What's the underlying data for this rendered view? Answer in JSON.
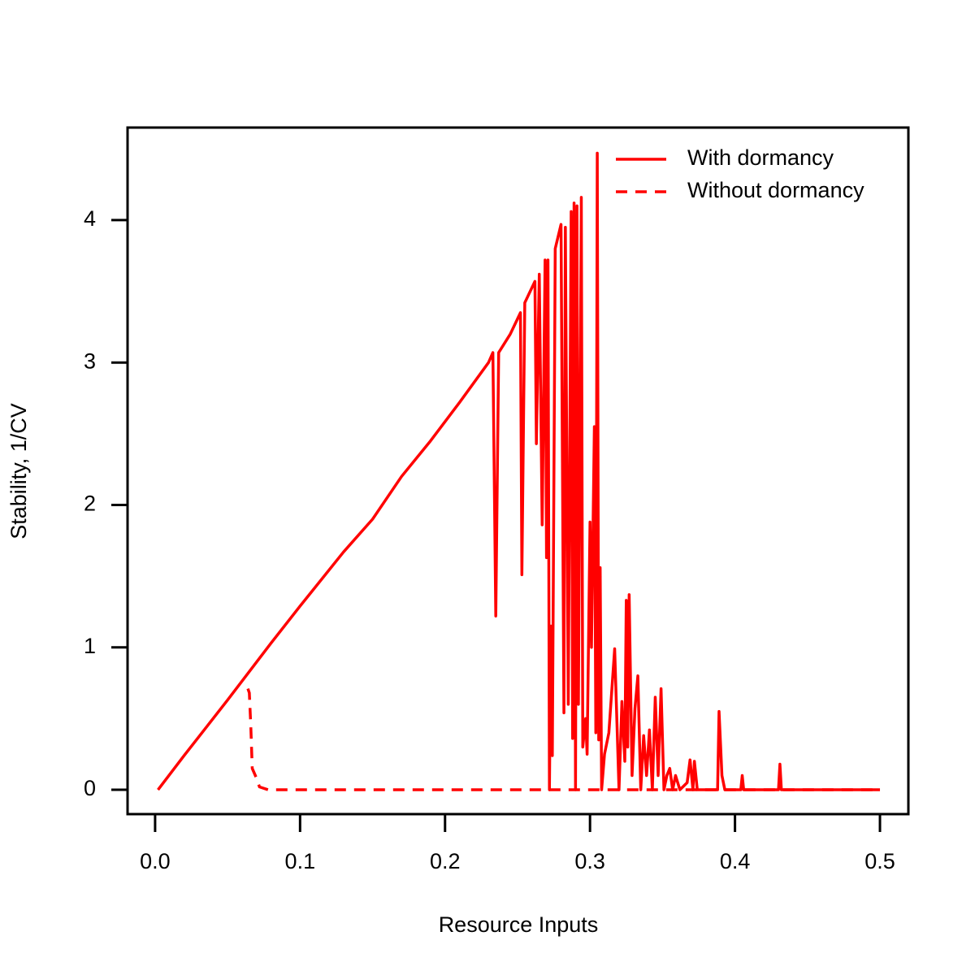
{
  "chart_data": {
    "type": "line",
    "x_label": "Resource Inputs",
    "y_label": "Stability, 1/CV",
    "xlim": [
      -0.019,
      0.5196
    ],
    "ylim": [
      -0.171,
      4.65
    ],
    "xticks": [
      {
        "value": 0,
        "label": "0.0"
      },
      0.1,
      0.2,
      0.3,
      0.4,
      0.5
    ],
    "yticks": [
      0,
      1,
      2,
      3,
      4
    ],
    "legend": "top-right",
    "series": [
      {
        "name": "With dormancy",
        "color": "#ff0000",
        "linestyle": "solid",
        "x": [
          0.002,
          0.02,
          0.05,
          0.08,
          0.1,
          0.13,
          0.15,
          0.17,
          0.19,
          0.21,
          0.23,
          0.233,
          0.235,
          0.237,
          0.245,
          0.252,
          0.253,
          0.255,
          0.262,
          0.263,
          0.265,
          0.267,
          0.269,
          0.27,
          0.271,
          0.272,
          0.273,
          0.274,
          0.276,
          0.28,
          0.282,
          0.283,
          0.285,
          0.287,
          0.288,
          0.289,
          0.29,
          0.291,
          0.292,
          0.294,
          0.295,
          0.297,
          0.298,
          0.3,
          0.301,
          0.303,
          0.304,
          0.305,
          0.306,
          0.307,
          0.308,
          0.31,
          0.313,
          0.317,
          0.32,
          0.322,
          0.324,
          0.325,
          0.326,
          0.327,
          0.329,
          0.331,
          0.333,
          0.335,
          0.337,
          0.339,
          0.341,
          0.343,
          0.345,
          0.347,
          0.349,
          0.351,
          0.353,
          0.355,
          0.357,
          0.359,
          0.362,
          0.367,
          0.369,
          0.371,
          0.372,
          0.374,
          0.388,
          0.389,
          0.391,
          0.393,
          0.404,
          0.405,
          0.406,
          0.43,
          0.431,
          0.432,
          0.5
        ],
        "values": [
          0,
          0.24,
          0.63,
          1.03,
          1.29,
          1.67,
          1.9,
          2.2,
          2.45,
          2.72,
          3.0,
          3.07,
          1.22,
          3.07,
          3.2,
          3.35,
          1.51,
          3.42,
          3.57,
          2.43,
          3.62,
          1.86,
          3.72,
          1.63,
          3.72,
          0,
          1.15,
          0.24,
          3.8,
          3.97,
          0.54,
          3.95,
          0.6,
          4.06,
          0.36,
          4.12,
          0,
          4.1,
          0.6,
          4.16,
          0.3,
          0.5,
          0.25,
          1.88,
          1.0,
          2.55,
          0.4,
          4.47,
          0.35,
          1.56,
          0,
          0.25,
          0.4,
          0.99,
          0,
          0.62,
          0.2,
          1.33,
          0.3,
          1.37,
          0.1,
          0.57,
          0.8,
          0,
          0.38,
          0.1,
          0.42,
          0,
          0.65,
          0.1,
          0.71,
          0,
          0.1,
          0.15,
          0,
          0.1,
          0,
          0.05,
          0.21,
          0,
          0.2,
          0,
          0,
          0.55,
          0.1,
          0,
          0,
          0.1,
          0,
          0,
          0.18,
          0,
          0
        ]
      },
      {
        "name": "Without dormancy",
        "color": "#ff0000",
        "linestyle": "dashed",
        "x": [
          0.064,
          0.065,
          0.066,
          0.067,
          0.07,
          0.072,
          0.078,
          0.5
        ],
        "values": [
          0.71,
          0.68,
          0.45,
          0.15,
          0.08,
          0.02,
          0,
          0
        ]
      }
    ]
  }
}
